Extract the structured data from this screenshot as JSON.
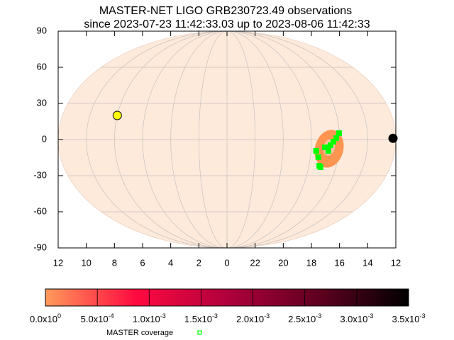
{
  "chart_data": {
    "type": "skymap",
    "title": "MASTER-NET LIGO GRB230723.49 observations",
    "subtitle": "since 2023-07-23 11:42:33.03 up to 2023-08-06 11:42:33",
    "ylim": [
      -90,
      90
    ],
    "yticks": [
      90,
      60,
      30,
      0,
      -30,
      -60,
      -90
    ],
    "x_tick_labels": [
      "12",
      "10",
      "8",
      "6",
      "4",
      "2",
      "0",
      "22",
      "20",
      "18",
      "16",
      "14",
      "12"
    ],
    "grid": true,
    "series": [
      {
        "name": "MASTER coverage",
        "color": "#00ff00",
        "ra": [
          17.63,
          17.42,
          17.24,
          17.13,
          16.63,
          16.44,
          16.23,
          16.02,
          16.76,
          17.02
        ],
        "dec": [
          -9.4,
          -14.7,
          -21.8,
          -22.9,
          -4.7,
          -1.8,
          1.2,
          5.3,
          -9.4,
          -6.5
        ]
      }
    ],
    "points": [
      {
        "color": "#ffff00",
        "ra": 8.0,
        "dec": 20
      },
      {
        "color": "#000000",
        "ra": 12.2,
        "dec": 1
      }
    ],
    "colorbar": {
      "clim": [
        0,
        0.0035
      ],
      "colors": [
        "#ff9a5a",
        "#ff0a40",
        "#b0003c",
        "#600020",
        "#000000"
      ],
      "ticks": [
        {
          "value": 0,
          "label": "0.0x10",
          "exp": "0"
        },
        {
          "value": 0.0005,
          "label": "5.0x10",
          "exp": "-4"
        },
        {
          "value": 0.001,
          "label": "1.0x10",
          "exp": "-3"
        },
        {
          "value": 0.0015,
          "label": "1.5x10",
          "exp": "-3"
        },
        {
          "value": 0.002,
          "label": "2.0x10",
          "exp": "-3"
        },
        {
          "value": 0.0025,
          "label": "2.5x10",
          "exp": "-3"
        },
        {
          "value": 0.003,
          "label": "3.0x10",
          "exp": "-3"
        },
        {
          "value": 0.0035,
          "label": "3.5x10",
          "exp": "-3"
        }
      ]
    }
  }
}
